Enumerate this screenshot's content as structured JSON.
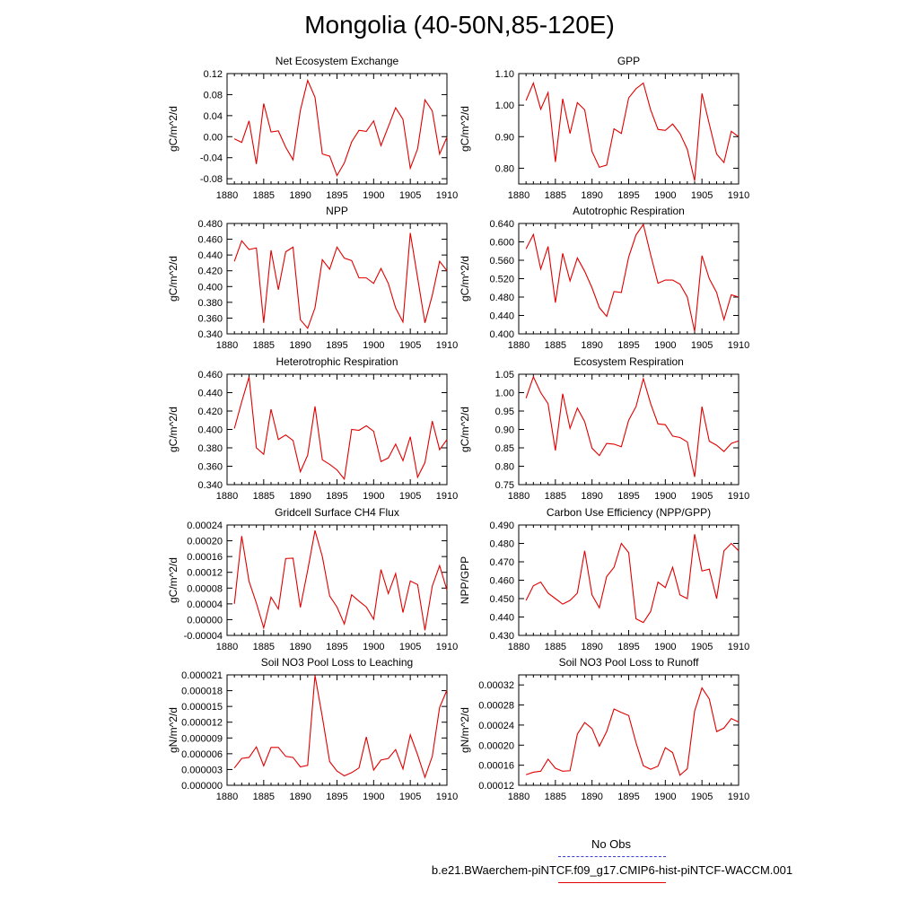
{
  "title": "Mongolia (40-50N,85-120E)",
  "legend": {
    "obs_label": "No Obs",
    "run_label": "b.e21.BWaerchem-piNTCF.f09_g17.CMIP6-hist-piNTCF-WACCM.001",
    "obs_color": "#3b3bd6",
    "run_color": "#e00000"
  },
  "chart_data": [
    {
      "type": "line",
      "title": "Net Ecosystem Exchange",
      "ylabel": "gC/m^2/d",
      "xlim": [
        1880,
        1910
      ],
      "ylim": [
        -0.09,
        0.12
      ],
      "xticks": [
        "1880",
        "1885",
        "1890",
        "1895",
        "1900",
        "1905",
        "1910"
      ],
      "yticks": [
        "-0.08",
        "-0.04",
        "0.00",
        "0.04",
        "0.08",
        "0.12"
      ],
      "ytick_values": [
        -0.08,
        -0.04,
        0.0,
        0.04,
        0.08,
        0.12
      ],
      "x": [
        1881,
        1882,
        1883,
        1884,
        1885,
        1886,
        1887,
        1888,
        1889,
        1890,
        1891,
        1892,
        1893,
        1894,
        1895,
        1896,
        1897,
        1898,
        1899,
        1900,
        1901,
        1902,
        1903,
        1904,
        1905,
        1906,
        1907,
        1908,
        1909,
        1910
      ],
      "values": [
        -0.004,
        -0.011,
        0.03,
        -0.052,
        0.063,
        0.009,
        0.011,
        -0.02,
        -0.044,
        0.05,
        0.107,
        0.075,
        -0.033,
        -0.037,
        -0.074,
        -0.05,
        -0.01,
        0.012,
        0.01,
        0.03,
        -0.017,
        0.019,
        0.055,
        0.033,
        -0.06,
        -0.023,
        0.07,
        0.049,
        -0.033,
        -0.001
      ]
    },
    {
      "type": "line",
      "title": "GPP",
      "ylabel": "gC/m^2/d",
      "xlim": [
        1880,
        1910
      ],
      "ylim": [
        0.75,
        1.1
      ],
      "xticks": [
        "1880",
        "1885",
        "1890",
        "1895",
        "1900",
        "1905",
        "1910"
      ],
      "yticks": [
        "0.80",
        "0.90",
        "1.00",
        "1.10"
      ],
      "ytick_values": [
        0.8,
        0.9,
        1.0,
        1.1
      ],
      "x": [
        1881,
        1882,
        1883,
        1884,
        1885,
        1886,
        1887,
        1888,
        1889,
        1890,
        1891,
        1892,
        1893,
        1894,
        1895,
        1896,
        1897,
        1898,
        1899,
        1900,
        1901,
        1902,
        1903,
        1904,
        1905,
        1906,
        1907,
        1908,
        1909,
        1910
      ],
      "values": [
        1.015,
        1.07,
        0.987,
        1.04,
        0.82,
        1.02,
        0.91,
        1.008,
        0.985,
        0.853,
        0.803,
        0.81,
        0.925,
        0.91,
        1.023,
        1.052,
        1.07,
        0.985,
        0.923,
        0.92,
        0.94,
        0.91,
        0.86,
        0.76,
        1.037,
        0.94,
        0.845,
        0.818,
        0.917,
        0.9
      ]
    },
    {
      "type": "line",
      "title": "NPP",
      "ylabel": "gC/m^2/d",
      "xlim": [
        1880,
        1910
      ],
      "ylim": [
        0.34,
        0.48
      ],
      "xticks": [
        "1880",
        "1885",
        "1890",
        "1895",
        "1900",
        "1905",
        "1910"
      ],
      "yticks": [
        "0.340",
        "0.360",
        "0.380",
        "0.400",
        "0.420",
        "0.440",
        "0.460",
        "0.480"
      ],
      "ytick_values": [
        0.34,
        0.36,
        0.38,
        0.4,
        0.42,
        0.44,
        0.46,
        0.48
      ],
      "x": [
        1881,
        1882,
        1883,
        1884,
        1885,
        1886,
        1887,
        1888,
        1889,
        1890,
        1891,
        1892,
        1893,
        1894,
        1895,
        1896,
        1897,
        1898,
        1899,
        1900,
        1901,
        1902,
        1903,
        1904,
        1905,
        1906,
        1907,
        1908,
        1909,
        1910
      ],
      "values": [
        0.432,
        0.458,
        0.447,
        0.449,
        0.354,
        0.446,
        0.396,
        0.444,
        0.45,
        0.358,
        0.347,
        0.373,
        0.434,
        0.422,
        0.45,
        0.436,
        0.433,
        0.411,
        0.411,
        0.404,
        0.423,
        0.404,
        0.373,
        0.355,
        0.468,
        0.411,
        0.354,
        0.389,
        0.432,
        0.42
      ]
    },
    {
      "type": "line",
      "title": "Autotrophic Respiration",
      "ylabel": "gC/m^2/d",
      "xlim": [
        1880,
        1910
      ],
      "ylim": [
        0.4,
        0.64
      ],
      "xticks": [
        "1880",
        "1885",
        "1890",
        "1895",
        "1900",
        "1905",
        "1910"
      ],
      "yticks": [
        "0.400",
        "0.440",
        "0.480",
        "0.520",
        "0.560",
        "0.600",
        "0.640"
      ],
      "ytick_values": [
        0.4,
        0.44,
        0.48,
        0.52,
        0.56,
        0.6,
        0.64
      ],
      "x": [
        1881,
        1882,
        1883,
        1884,
        1885,
        1886,
        1887,
        1888,
        1889,
        1890,
        1891,
        1892,
        1893,
        1894,
        1895,
        1896,
        1897,
        1898,
        1899,
        1900,
        1901,
        1902,
        1903,
        1904,
        1905,
        1906,
        1907,
        1908,
        1909,
        1910
      ],
      "values": [
        0.585,
        0.616,
        0.541,
        0.59,
        0.468,
        0.575,
        0.515,
        0.565,
        0.536,
        0.5,
        0.457,
        0.438,
        0.492,
        0.49,
        0.567,
        0.615,
        0.638,
        0.572,
        0.51,
        0.517,
        0.517,
        0.508,
        0.48,
        0.405,
        0.57,
        0.52,
        0.49,
        0.431,
        0.485,
        0.48
      ]
    },
    {
      "type": "line",
      "title": "Heterotrophic Respiration",
      "ylabel": "gC/m^2/d",
      "xlim": [
        1880,
        1910
      ],
      "ylim": [
        0.34,
        0.46
      ],
      "xticks": [
        "1880",
        "1885",
        "1890",
        "1895",
        "1900",
        "1905",
        "1910"
      ],
      "yticks": [
        "0.340",
        "0.360",
        "0.380",
        "0.400",
        "0.420",
        "0.440",
        "0.460"
      ],
      "ytick_values": [
        0.34,
        0.36,
        0.38,
        0.4,
        0.42,
        0.44,
        0.46
      ],
      "x": [
        1881,
        1882,
        1883,
        1884,
        1885,
        1886,
        1887,
        1888,
        1889,
        1890,
        1891,
        1892,
        1893,
        1894,
        1895,
        1896,
        1897,
        1898,
        1899,
        1900,
        1901,
        1902,
        1903,
        1904,
        1905,
        1906,
        1907,
        1908,
        1909,
        1910
      ],
      "values": [
        0.401,
        0.43,
        0.457,
        0.38,
        0.373,
        0.422,
        0.389,
        0.394,
        0.388,
        0.354,
        0.372,
        0.425,
        0.367,
        0.362,
        0.356,
        0.346,
        0.4,
        0.399,
        0.404,
        0.398,
        0.365,
        0.369,
        0.384,
        0.366,
        0.392,
        0.348,
        0.364,
        0.409,
        0.378,
        0.389
      ]
    },
    {
      "type": "line",
      "title": "Ecosystem Respiration",
      "ylabel": "gC/m^2/d",
      "xlim": [
        1880,
        1910
      ],
      "ylim": [
        0.75,
        1.05
      ],
      "xticks": [
        "1880",
        "1885",
        "1890",
        "1895",
        "1900",
        "1905",
        "1910"
      ],
      "yticks": [
        "0.75",
        "0.80",
        "0.85",
        "0.90",
        "0.95",
        "1.00",
        "1.05"
      ],
      "ytick_values": [
        0.75,
        0.8,
        0.85,
        0.9,
        0.95,
        1.0,
        1.05
      ],
      "x": [
        1881,
        1882,
        1883,
        1884,
        1885,
        1886,
        1887,
        1888,
        1889,
        1890,
        1891,
        1892,
        1893,
        1894,
        1895,
        1896,
        1897,
        1898,
        1899,
        1900,
        1901,
        1902,
        1903,
        1904,
        1905,
        1906,
        1907,
        1908,
        1909,
        1910
      ],
      "values": [
        0.985,
        1.043,
        1.0,
        0.97,
        0.843,
        0.997,
        0.903,
        0.958,
        0.921,
        0.849,
        0.829,
        0.862,
        0.86,
        0.853,
        0.925,
        0.962,
        1.038,
        0.97,
        0.915,
        0.913,
        0.882,
        0.878,
        0.866,
        0.771,
        0.962,
        0.868,
        0.857,
        0.84,
        0.862,
        0.869
      ]
    },
    {
      "type": "line",
      "title": "Gridcell Surface CH4 Flux",
      "ylabel": "gC/m^2/d",
      "xlim": [
        1880,
        1910
      ],
      "ylim": [
        -4e-05,
        0.00024
      ],
      "xticks": [
        "1880",
        "1885",
        "1890",
        "1895",
        "1900",
        "1905",
        "1910"
      ],
      "yticks": [
        "-0.00004",
        "0.00000",
        "0.00004",
        "0.00008",
        "0.00012",
        "0.00016",
        "0.00020",
        "0.00024"
      ],
      "ytick_values": [
        -4e-05,
        0.0,
        4e-05,
        8e-05,
        0.00012,
        0.00016,
        0.0002,
        0.00024
      ],
      "x": [
        1881,
        1882,
        1883,
        1884,
        1885,
        1886,
        1887,
        1888,
        1889,
        1890,
        1891,
        1892,
        1893,
        1894,
        1895,
        1896,
        1897,
        1898,
        1899,
        1900,
        1901,
        1902,
        1903,
        1904,
        1905,
        1906,
        1907,
        1908,
        1909,
        1910
      ],
      "values": [
        4e-05,
        0.000212,
        9.7e-05,
        4.2e-05,
        -2.1e-05,
        5.7e-05,
        2.7e-05,
        0.000155,
        0.000156,
        3.1e-05,
        0.000125,
        0.000226,
        0.00016,
        6e-05,
        3.2e-05,
        -1.1e-05,
        6.3e-05,
        4.7e-05,
        3.2e-05,
        1e-06,
        0.000127,
        6.6e-05,
        0.000117,
        1.8e-05,
        9.8e-05,
        8.9e-05,
        -2.7e-05,
        8.5e-05,
        0.000137,
        7.5e-05
      ]
    },
    {
      "type": "line",
      "title": "Carbon Use Efficiency (NPP/GPP)",
      "ylabel": "NPP/GPP",
      "xlim": [
        1880,
        1910
      ],
      "ylim": [
        0.43,
        0.49
      ],
      "xticks": [
        "1880",
        "1885",
        "1890",
        "1895",
        "1900",
        "1905",
        "1910"
      ],
      "yticks": [
        "0.430",
        "0.440",
        "0.450",
        "0.460",
        "0.470",
        "0.480",
        "0.490"
      ],
      "ytick_values": [
        0.43,
        0.44,
        0.45,
        0.46,
        0.47,
        0.48,
        0.49
      ],
      "x": [
        1881,
        1882,
        1883,
        1884,
        1885,
        1886,
        1887,
        1888,
        1889,
        1890,
        1891,
        1892,
        1893,
        1894,
        1895,
        1896,
        1897,
        1898,
        1899,
        1900,
        1901,
        1902,
        1903,
        1904,
        1905,
        1906,
        1907,
        1908,
        1909,
        1910
      ],
      "values": [
        0.449,
        0.457,
        0.459,
        0.453,
        0.45,
        0.447,
        0.449,
        0.453,
        0.476,
        0.452,
        0.445,
        0.462,
        0.467,
        0.48,
        0.475,
        0.439,
        0.437,
        0.443,
        0.459,
        0.456,
        0.467,
        0.452,
        0.45,
        0.485,
        0.465,
        0.466,
        0.45,
        0.476,
        0.48,
        0.476
      ]
    },
    {
      "type": "line",
      "title": "Soil NO3 Pool Loss to Leaching",
      "ylabel": "gN/m^2/d",
      "xlim": [
        1880,
        1910
      ],
      "ylim": [
        0.0,
        2.1e-05
      ],
      "xticks": [
        "1880",
        "1885",
        "1890",
        "1895",
        "1900",
        "1905",
        "1910"
      ],
      "yticks": [
        "0.000000",
        "0.000003",
        "0.000006",
        "0.000009",
        "0.000012",
        "0.000015",
        "0.000018",
        "0.000021"
      ],
      "ytick_values": [
        0.0,
        3e-06,
        6e-06,
        9e-06,
        1.2e-05,
        1.5e-05,
        1.8e-05,
        2.1e-05
      ],
      "x": [
        1881,
        1882,
        1883,
        1884,
        1885,
        1886,
        1887,
        1888,
        1889,
        1890,
        1891,
        1892,
        1893,
        1894,
        1895,
        1896,
        1897,
        1898,
        1899,
        1900,
        1901,
        1902,
        1903,
        1904,
        1905,
        1906,
        1907,
        1908,
        1909,
        1910
      ],
      "values": [
        3.3e-06,
        5.1e-06,
        5.3e-06,
        7.3e-06,
        3.7e-06,
        7.2e-06,
        7.2e-06,
        5.5e-06,
        5.3e-06,
        3.5e-06,
        3.8e-06,
        2.09e-05,
        1.3e-05,
        4.5e-06,
        2.7e-06,
        1.8e-06,
        2.4e-06,
        3.3e-06,
        9.2e-06,
        2.9e-06,
        4.8e-06,
        5.1e-06,
        6.8e-06,
        3.1e-06,
        9.6e-06,
        5.8e-06,
        1.5e-06,
        5.5e-06,
        1.48e-05,
        1.81e-05
      ]
    },
    {
      "type": "line",
      "title": "Soil NO3 Pool Loss to Runoff",
      "ylabel": "gN/m^2/d",
      "xlim": [
        1880,
        1910
      ],
      "ylim": [
        0.00012,
        0.00034
      ],
      "xticks": [
        "1880",
        "1885",
        "1890",
        "1895",
        "1900",
        "1905",
        "1910"
      ],
      "yticks": [
        "0.00012",
        "0.00016",
        "0.00020",
        "0.00024",
        "0.00028",
        "0.00032"
      ],
      "ytick_values": [
        0.00012,
        0.00016,
        0.0002,
        0.00024,
        0.00028,
        0.00032
      ],
      "x": [
        1881,
        1882,
        1883,
        1884,
        1885,
        1886,
        1887,
        1888,
        1889,
        1890,
        1891,
        1892,
        1893,
        1894,
        1895,
        1896,
        1897,
        1898,
        1899,
        1900,
        1901,
        1902,
        1903,
        1904,
        1905,
        1906,
        1907,
        1908,
        1909,
        1910
      ],
      "values": [
        0.000141,
        0.000146,
        0.000148,
        0.000172,
        0.000154,
        0.000148,
        0.000149,
        0.000222,
        0.000245,
        0.000233,
        0.000198,
        0.000227,
        0.000272,
        0.000265,
        0.000259,
        0.000205,
        0.000159,
        0.000152,
        0.000158,
        0.000195,
        0.000185,
        0.00014,
        0.000153,
        0.000268,
        0.000314,
        0.000292,
        0.000227,
        0.000234,
        0.000253,
        0.000246
      ]
    }
  ]
}
